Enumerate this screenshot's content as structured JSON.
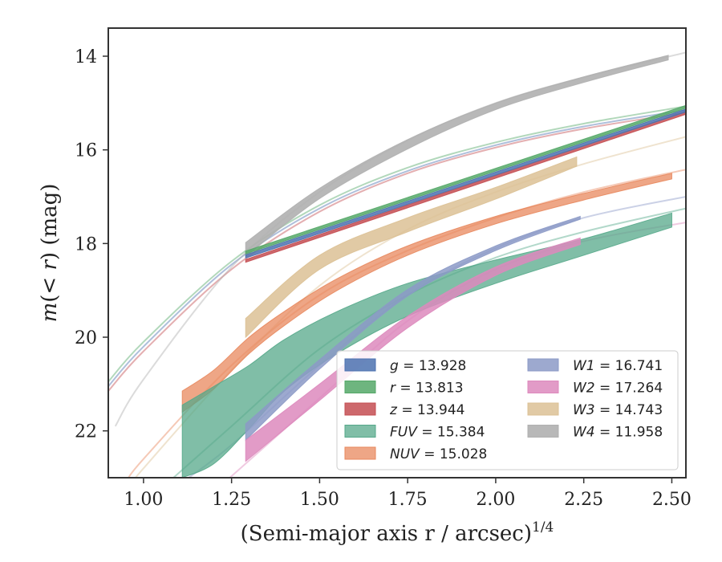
{
  "chart_data": {
    "type": "line",
    "xlabel": "(Semi-major axis r / arcsec)",
    "xlabel_exponent": "1/4",
    "ylabel": "m(< r) (mag)",
    "xlim": [
      0.9,
      2.54
    ],
    "ylim": [
      23.0,
      13.4
    ],
    "y_inverted": true,
    "xticks": [
      "1.00",
      "1.25",
      "1.50",
      "1.75",
      "2.00",
      "2.25",
      "2.50"
    ],
    "yticks": [
      "14",
      "16",
      "18",
      "20",
      "22"
    ],
    "grid": false,
    "legend_placement": "lower right",
    "series": [
      {
        "name": "g = 13.928",
        "band": "g",
        "mag": "13.928",
        "color": "#4c72b0",
        "fill_alpha": 0.85,
        "curve": {
          "x": [
            0.9,
            1.0,
            1.25,
            1.5,
            1.75,
            2.0,
            2.25,
            2.54
          ],
          "y": [
            21.05,
            20.2,
            18.45,
            17.25,
            16.45,
            15.9,
            15.5,
            15.15
          ]
        },
        "band_range": {
          "x": [
            1.29,
            2.54
          ],
          "y_top": [
            18.24,
            15.13
          ],
          "y_bot": [
            18.31,
            15.19
          ]
        }
      },
      {
        "name": "r = 13.813",
        "band": "r",
        "mag": "13.813",
        "color": "#55a868",
        "fill_alpha": 0.85,
        "curve": {
          "x": [
            0.9,
            1.0,
            1.25,
            1.5,
            1.75,
            2.0,
            2.25,
            2.54
          ],
          "y": [
            20.95,
            20.1,
            18.38,
            17.18,
            16.38,
            15.84,
            15.44,
            15.07
          ]
        },
        "band_range": {
          "x": [
            1.29,
            2.54
          ],
          "y_top": [
            18.16,
            15.05
          ],
          "y_bot": [
            18.22,
            15.11
          ]
        }
      },
      {
        "name": "z = 13.944",
        "band": "z",
        "mag": "13.944",
        "color": "#c44e52",
        "fill_alpha": 0.85,
        "curve": {
          "x": [
            0.9,
            1.0,
            1.25,
            1.5,
            1.75,
            2.0,
            2.25,
            2.54
          ],
          "y": [
            21.15,
            20.3,
            18.55,
            17.32,
            16.5,
            15.95,
            15.55,
            15.2
          ]
        },
        "band_range": {
          "x": [
            1.29,
            2.54
          ],
          "y_top": [
            18.34,
            15.18
          ],
          "y_bot": [
            18.4,
            15.24
          ]
        }
      },
      {
        "name": "FUV = 15.384",
        "band": "FUV",
        "mag": "15.384",
        "color": "#55a88a",
        "fill_alpha": 0.75,
        "curve": {
          "x": [
            1.07,
            1.25,
            1.5,
            1.75,
            2.0,
            2.25,
            2.54
          ],
          "y": [
            23.1,
            21.9,
            20.25,
            19.1,
            18.3,
            17.75,
            17.25
          ]
        },
        "band_range": {
          "x": [
            1.11,
            1.2,
            1.3,
            1.4,
            1.55,
            1.75,
            2.0,
            2.25,
            2.5
          ],
          "y_top": [
            21.45,
            21.05,
            20.6,
            20.05,
            19.45,
            18.85,
            18.35,
            17.9,
            17.35
          ],
          "y_bot": [
            23.0,
            22.7,
            21.95,
            21.15,
            20.35,
            19.55,
            18.85,
            18.25,
            17.65
          ]
        }
      },
      {
        "name": "NUV = 15.028",
        "band": "NUV",
        "mag": "15.028",
        "color": "#e8885e",
        "fill_alpha": 0.75,
        "curve": {
          "x": [
            0.95,
            1.0,
            1.25,
            1.5,
            1.75,
            2.0,
            2.25,
            2.54
          ],
          "y": [
            23.1,
            22.6,
            20.6,
            19.1,
            18.15,
            17.45,
            16.9,
            16.42
          ]
        },
        "band_range": {
          "x": [
            1.11,
            1.2,
            1.3,
            1.4,
            1.55,
            1.75,
            2.0,
            2.25,
            2.5
          ],
          "y_top": [
            21.15,
            20.7,
            20.0,
            19.45,
            18.75,
            18.05,
            17.42,
            16.93,
            16.5
          ],
          "y_bot": [
            21.6,
            21.1,
            20.35,
            19.75,
            19.0,
            18.25,
            17.58,
            17.07,
            16.62
          ]
        }
      },
      {
        "name": "W1 = 16.741",
        "band": "W1",
        "mag": "16.741",
        "color": "#8c9ac7",
        "fill_alpha": 0.85,
        "curve": {
          "x": [
            1.11,
            1.25,
            1.5,
            1.75,
            2.0,
            2.25,
            2.54
          ],
          "y": [
            23.1,
            22.3,
            20.6,
            19.1,
            18.1,
            17.45,
            17.0
          ]
        },
        "band_range": {
          "x": [
            1.29,
            1.5,
            1.75,
            2.0,
            2.24
          ],
          "y_top": [
            21.85,
            20.48,
            18.98,
            18.05,
            17.42
          ],
          "y_bot": [
            22.2,
            20.68,
            19.12,
            18.15,
            17.48
          ]
        }
      },
      {
        "name": "W2 = 17.264",
        "band": "W2",
        "mag": "17.264",
        "color": "#dd8abd",
        "fill_alpha": 0.85,
        "curve": {
          "x": [
            1.23,
            1.5,
            1.75,
            2.0,
            2.25,
            2.54
          ],
          "y": [
            23.1,
            21.3,
            19.65,
            18.55,
            17.95,
            17.55
          ]
        },
        "band_range": {
          "x": [
            1.29,
            1.5,
            1.75,
            2.0,
            2.24
          ],
          "y_top": [
            22.2,
            21.0,
            19.55,
            18.5,
            17.88
          ],
          "y_bot": [
            22.65,
            21.35,
            19.8,
            18.68,
            18.02
          ]
        }
      },
      {
        "name": "W3 = 14.743",
        "band": "W3",
        "mag": "14.743",
        "color": "#dcc195",
        "fill_alpha": 0.85,
        "curve": {
          "x": [
            0.97,
            1.0,
            1.25,
            1.5,
            1.75,
            2.0,
            2.25,
            2.54
          ],
          "y": [
            23.1,
            22.8,
            20.7,
            18.9,
            17.7,
            16.9,
            16.3,
            15.72
          ]
        },
        "band_range": {
          "x": [
            1.29,
            1.5,
            1.75,
            2.0,
            2.23
          ],
          "y_top": [
            19.6,
            18.25,
            17.45,
            16.8,
            16.15
          ],
          "y_bot": [
            20.0,
            18.55,
            17.75,
            17.05,
            16.35
          ]
        }
      },
      {
        "name": "W4 = 11.958",
        "band": "W4",
        "mag": "11.958",
        "color": "#b0b0b0",
        "fill_alpha": 0.9,
        "curve": {
          "x": [
            0.92,
            1.0,
            1.25,
            1.5,
            1.75,
            2.0,
            2.25,
            2.54
          ],
          "y": [
            21.9,
            20.9,
            18.5,
            16.9,
            15.8,
            15.0,
            14.45,
            13.92
          ]
        },
        "band_range": {
          "x": [
            1.29,
            1.5,
            1.75,
            2.0,
            2.25,
            2.49
          ],
          "y_top": [
            17.98,
            16.82,
            15.78,
            15.0,
            14.44,
            13.98
          ],
          "y_bot": [
            18.28,
            17.04,
            15.98,
            15.14,
            14.56,
            14.08
          ]
        }
      }
    ],
    "legend_columns": [
      [
        "g",
        "r",
        "z",
        "FUV",
        "NUV"
      ],
      [
        "W1",
        "W2",
        "W3",
        "W4"
      ]
    ]
  }
}
